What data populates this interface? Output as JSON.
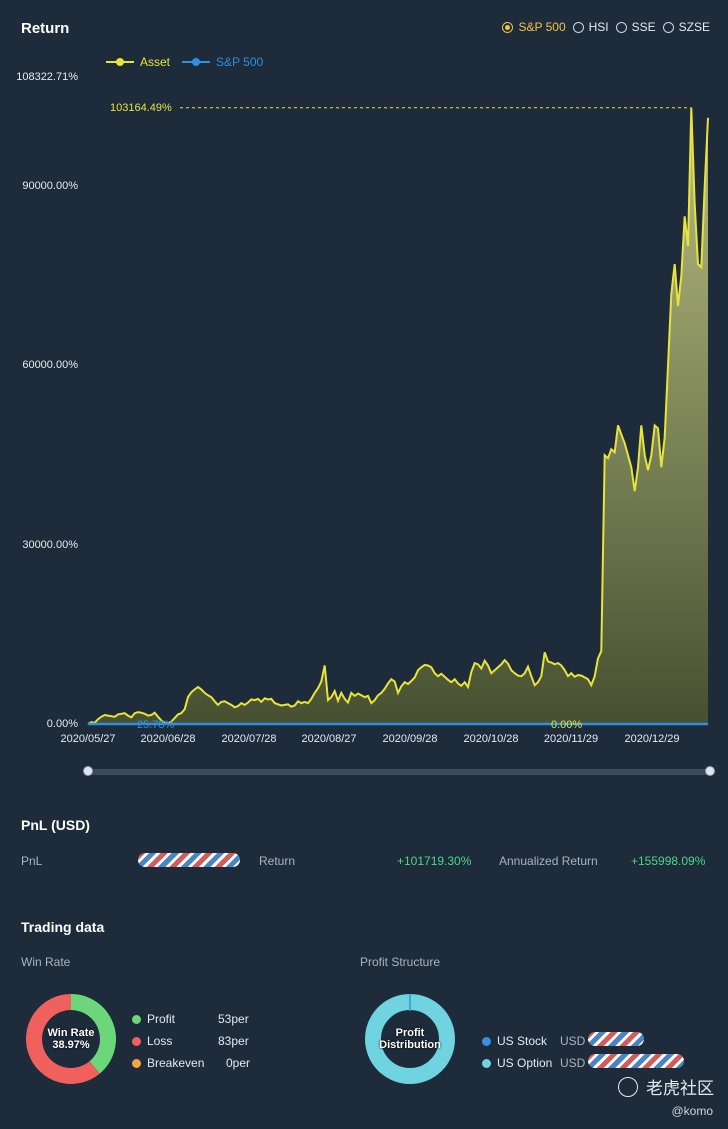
{
  "header": {
    "title": "Return"
  },
  "benchmarks": [
    {
      "label": "S&P 500",
      "active": true
    },
    {
      "label": "HSI",
      "active": false
    },
    {
      "label": "SSE",
      "active": false
    },
    {
      "label": "SZSE",
      "active": false
    }
  ],
  "legend": {
    "asset": "Asset",
    "benchmark": "S&P 500",
    "asset_color": "#e8e43a",
    "benchmark_color": "#2f8fe0"
  },
  "chart_data": {
    "type": "area",
    "y_ticks": [
      "108322.71%",
      "90000.00%",
      "60000.00%",
      "30000.00%",
      "0.00%"
    ],
    "x_ticks": [
      "2020/05/27",
      "2020/06/28",
      "2020/07/28",
      "2020/08/27",
      "2020/09/28",
      "2020/10/28",
      "2020/11/29",
      "2020/12/29"
    ],
    "ylim": [
      0,
      108322.71
    ],
    "max_marker_label": "103164.49%",
    "benchmark_label_1": "25.78%",
    "benchmark_label_2": "0.00%",
    "series": [
      {
        "name": "Asset",
        "values": [
          0,
          300,
          200,
          800,
          1200,
          1500,
          1400,
          1300,
          1200,
          1600,
          1700,
          1800,
          1400,
          1100,
          1800,
          2000,
          1900,
          1700,
          1400,
          1500,
          1900,
          1200,
          600,
          200,
          100,
          400,
          1000,
          1600,
          1800,
          2500,
          4500,
          5300,
          5800,
          6200,
          5800,
          5200,
          4800,
          4500,
          3800,
          3200,
          3700,
          3800,
          3500,
          3200,
          2800,
          3000,
          3500,
          3200,
          3600,
          4100,
          4000,
          4200,
          3700,
          4300,
          4100,
          4200,
          3500,
          3300,
          3100,
          3200,
          3300,
          2900,
          3100,
          3800,
          3500,
          3700,
          3500,
          4200,
          5200,
          6000,
          7100,
          9800,
          4000,
          4500,
          5500,
          3900,
          5200,
          4200,
          3600,
          5200,
          4700,
          5100,
          4800,
          4500,
          4700,
          3500,
          4000,
          4800,
          5200,
          5900,
          6800,
          7500,
          7100,
          5200,
          6300,
          7000,
          6700,
          7200,
          7800,
          9000,
          9500,
          9900,
          9800,
          9500,
          8500,
          8000,
          8400,
          7900,
          7400,
          7000,
          7500,
          6800,
          6400,
          7000,
          6200,
          8700,
          10200,
          10000,
          9300,
          10600,
          9800,
          8500,
          9000,
          9500,
          10000,
          10700,
          10100,
          9000,
          8500,
          8100,
          8000,
          8500,
          9600,
          8000,
          6500,
          7000,
          8000,
          12000,
          10500,
          10300,
          10000,
          10200,
          9800,
          9000,
          8000,
          8500,
          7900,
          8200,
          8100,
          7800,
          7500,
          6500,
          8000,
          11000,
          12200,
          45000,
          44500,
          46000,
          45500,
          50000,
          48500,
          47000,
          45000,
          43000,
          39000,
          43000,
          50000,
          45000,
          42500,
          45000,
          50000,
          49500,
          43000,
          48000,
          60000,
          72000,
          77000,
          70000,
          75000,
          85000,
          80000,
          103164.49,
          87000,
          77000,
          76500,
          90000,
          101500
        ]
      },
      {
        "name": "S&P 500",
        "values": [
          0,
          25.78
        ]
      }
    ]
  },
  "pnl": {
    "title": "PnL (USD)",
    "pnl_label": "PnL",
    "return_label": "Return",
    "return_value": "+101719.30%",
    "annualized_label": "Annualized Return",
    "annualized_value": "+155998.09%"
  },
  "trading": {
    "title": "Trading data",
    "win_rate_label": "Win Rate",
    "profit_structure_label": "Profit Structure",
    "win_rate_center_line1": "Win Rate",
    "win_rate_center_line2": "38.97%",
    "win_rate_fraction": 0.3897,
    "win_items": [
      {
        "label": "Profit",
        "value": "53per",
        "color": "#6bd67a"
      },
      {
        "label": "Loss",
        "value": "83per",
        "color": "#f0605d"
      },
      {
        "label": "Breakeven",
        "value": "0per",
        "color": "#f5a643"
      }
    ],
    "profit_center_line1": "Profit",
    "profit_center_line2": "Distribution",
    "profit_items": [
      {
        "label": "US Stock",
        "currency": "USD",
        "color": "#3b8fe2"
      },
      {
        "label": "US Option",
        "currency": "USD",
        "color": "#6fd3e0"
      }
    ]
  },
  "watermark": {
    "text": "老虎社区",
    "handle": "@komo"
  }
}
